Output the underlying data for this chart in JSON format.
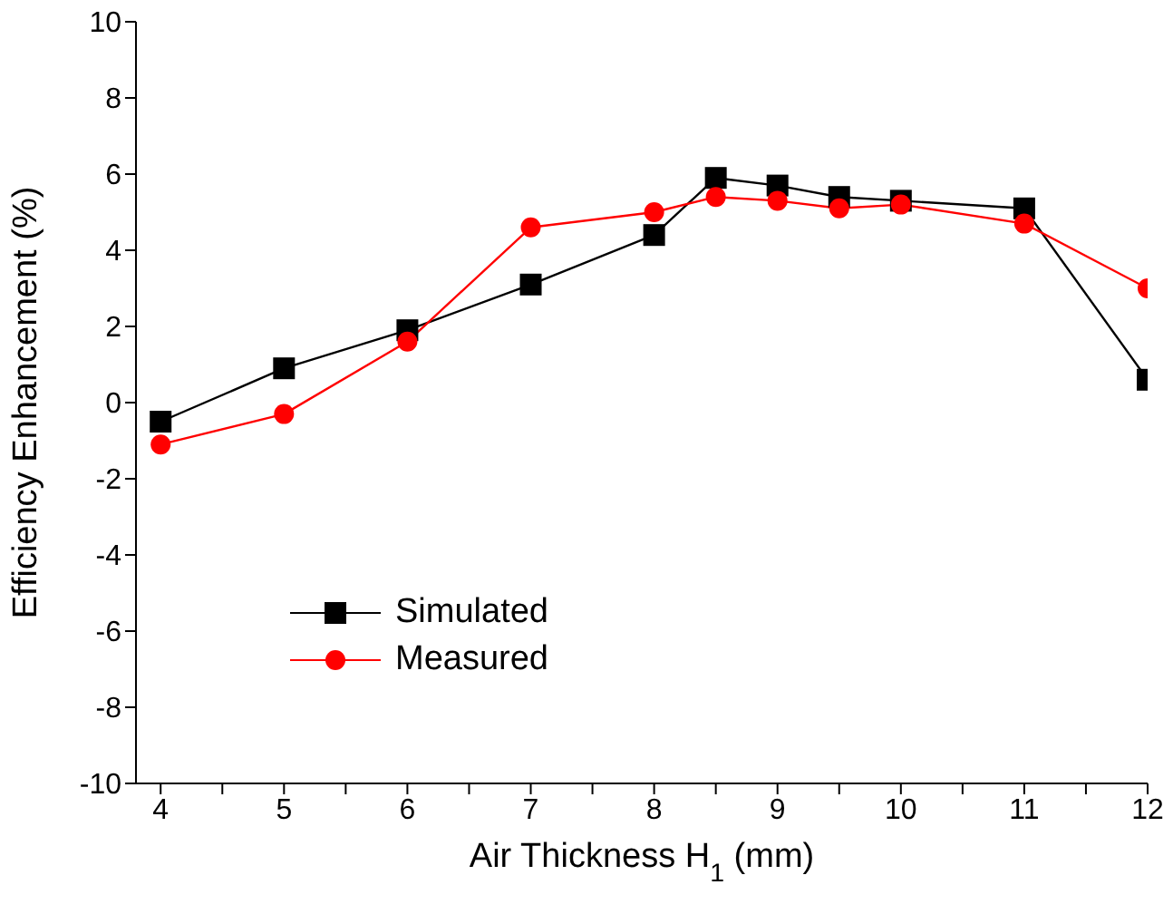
{
  "chart_data": {
    "type": "line",
    "xlabel": "Air Thickness H$_{1}$ (mm)",
    "ylabel": "Efficiency Enhancement (%)",
    "x": [
      4,
      5,
      6,
      7,
      8,
      8.5,
      9,
      9.5,
      10,
      11,
      12
    ],
    "series": [
      {
        "name": "Simulated",
        "color": "#000000",
        "marker": "square",
        "values": [
          -0.5,
          0.9,
          1.9,
          3.1,
          4.4,
          5.9,
          5.7,
          5.4,
          5.3,
          5.1,
          0.6
        ]
      },
      {
        "name": "Measured",
        "color": "#ff0000",
        "marker": "circle",
        "values": [
          -1.1,
          -0.3,
          1.6,
          4.6,
          5.0,
          5.4,
          5.3,
          5.1,
          5.2,
          4.7,
          3.0
        ]
      }
    ],
    "xlim": [
      3.8,
      12
    ],
    "xticks": [
      4,
      {
        "value": 4.5,
        "label": null
      },
      5,
      {
        "value": 5.5,
        "label": null
      },
      6,
      {
        "value": 6.5,
        "label": null
      },
      7,
      {
        "value": 7.5,
        "label": null
      },
      8,
      {
        "value": 8.5,
        "label": null
      },
      9,
      {
        "value": 9.5,
        "label": null
      },
      10,
      {
        "value": 10.5,
        "label": null
      },
      11,
      {
        "value": 11.5,
        "label": null
      },
      12
    ],
    "ylim": [
      -10,
      10
    ],
    "yticks": [
      -10,
      -8,
      -6,
      -4,
      -2,
      0,
      2,
      4,
      6,
      8,
      10
    ],
    "grid": false,
    "legend": "bottom left",
    "line_style": "solid"
  }
}
